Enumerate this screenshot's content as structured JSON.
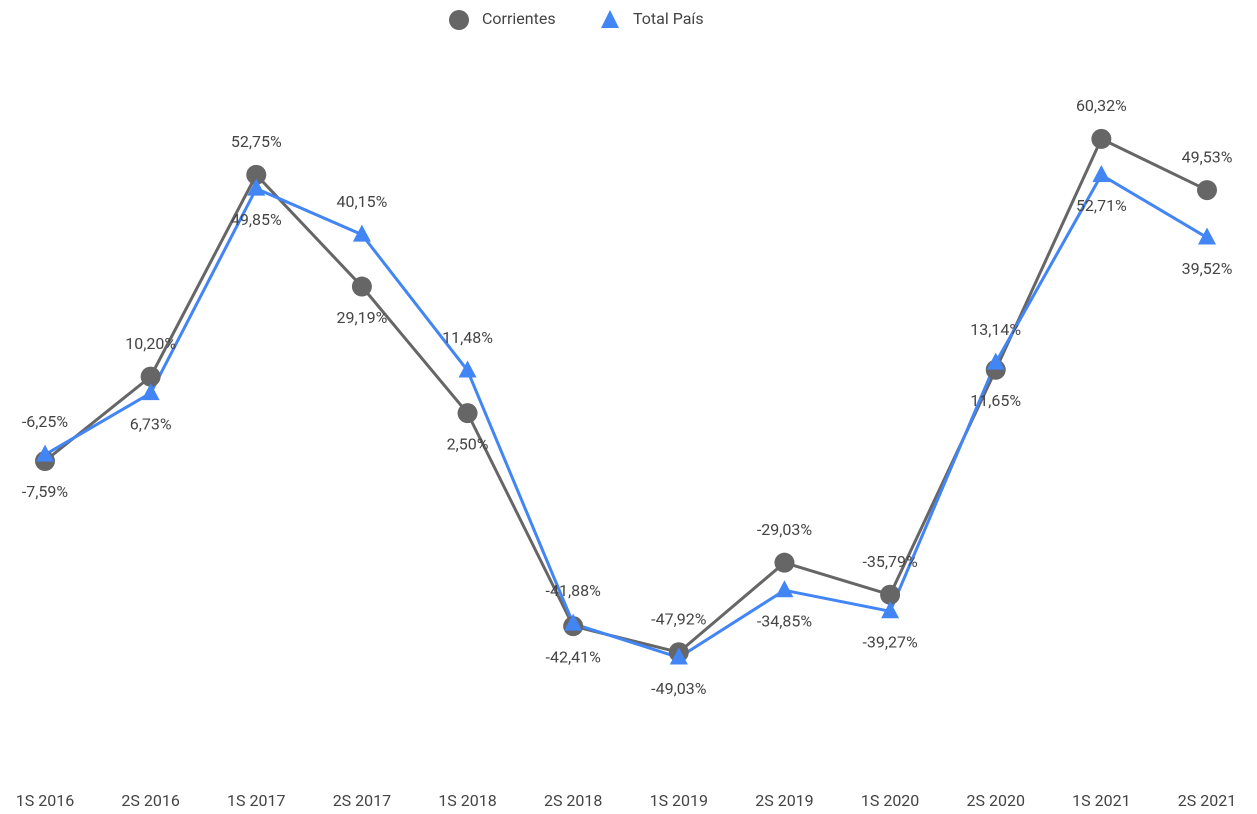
{
  "chart_data": {
    "type": "line",
    "categories": [
      "1S 2016",
      "2S 2016",
      "1S 2017",
      "2S 2017",
      "1S 2018",
      "2S 2018",
      "1S 2019",
      "2S 2019",
      "1S 2020",
      "2S 2020",
      "1S 2021",
      "2S 2021"
    ],
    "series": [
      {
        "name": "Corrientes",
        "color": "#666666",
        "values": [
          -7.59,
          10.2,
          52.75,
          29.19,
          2.5,
          -42.41,
          -47.92,
          -29.03,
          -35.79,
          11.65,
          60.32,
          49.53
        ],
        "value_labels": [
          "-7,59%",
          "10,20%",
          "52,75%",
          "29,19%",
          "2,50%",
          "-42,41%",
          "-47,92%",
          "-29,03%",
          "-35,79%",
          "11,65%",
          "60,32%",
          "49,53%"
        ]
      },
      {
        "name": "Total País",
        "color": "#4285f4",
        "values": [
          -6.25,
          6.73,
          49.85,
          40.15,
          11.48,
          -41.88,
          -49.03,
          -34.85,
          -39.27,
          13.14,
          52.71,
          39.52
        ],
        "value_labels": [
          "-6,25%",
          "6,73%",
          "49,85%",
          "40,15%",
          "11,48%",
          "-41,88%",
          "-49,03%",
          "-34,85%",
          "-39,27%",
          "13,14%",
          "52,71%",
          "39,52%"
        ]
      }
    ],
    "ylim": [
      -70,
      70
    ]
  }
}
